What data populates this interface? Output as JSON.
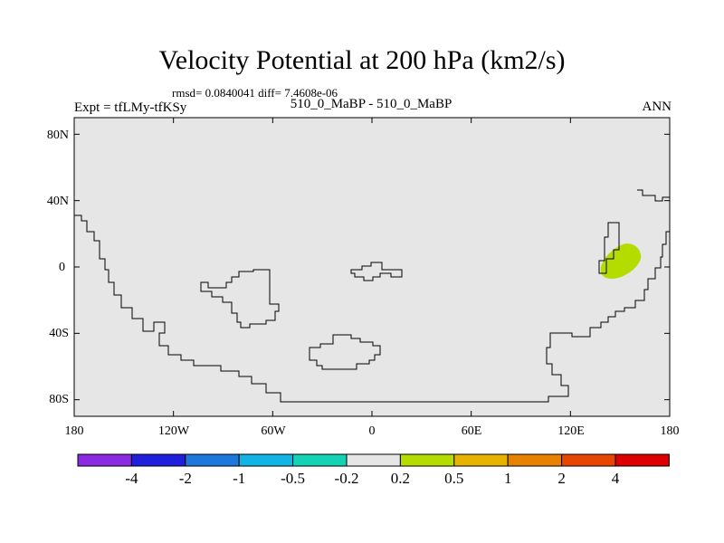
{
  "title": "Velocity Potential at 200 hPa (km2/s)",
  "stats": "rmsd= 0.0840041 diff= 7.4608e-06",
  "left_label": "Expt = tfLMy-tfKSy",
  "center_label": "510_0_MaBP - 510_0_MaBP",
  "right_label": "ANN",
  "map": {
    "lat_range": [
      -90,
      90
    ],
    "lon_range": [
      -180,
      180
    ],
    "lat_ticks": [
      "80N",
      "40N",
      "0",
      "40S",
      "80S"
    ],
    "lon_ticks": [
      "180",
      "120W",
      "60W",
      "0",
      "60E",
      "120E",
      "180"
    ],
    "background_color": "#e6e6e6",
    "feature": {
      "label": "anomaly 0.2 to 0.5",
      "color": "#b4dc00",
      "lon": 150,
      "lat": 3
    }
  },
  "colorbar": {
    "colors": [
      "#8a2be2",
      "#2020dc",
      "#1e78dc",
      "#12b4e6",
      "#14d2b4",
      "#e6e6e6",
      "#b4dc00",
      "#e6b400",
      "#e68200",
      "#e64600",
      "#dc0000"
    ],
    "labels": [
      "-4",
      "-2",
      "-1",
      "-0.5",
      "-0.2",
      "0.2",
      "0.5",
      "1",
      "2",
      "4"
    ]
  }
}
